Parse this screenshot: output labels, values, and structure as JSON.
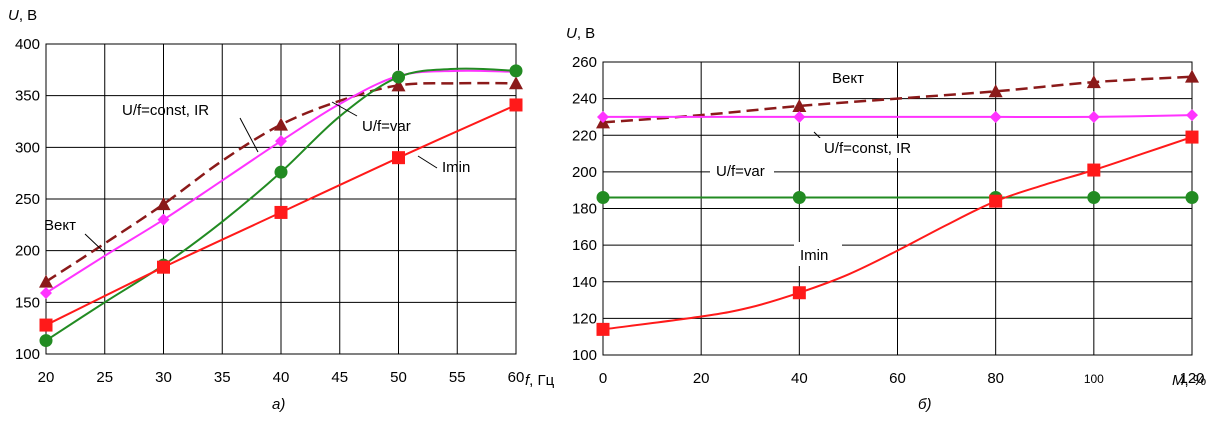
{
  "chart_data": [
    {
      "type": "line",
      "caption": "а)",
      "ylabel_var": "U",
      "ylabel_unit": ", В",
      "xlabel_var": "f",
      "xlabel_unit": ", Гц",
      "xlim": [
        20,
        60
      ],
      "ylim": [
        100,
        400
      ],
      "xticks": [
        "20",
        "25",
        "30",
        "35",
        "40",
        "45",
        "50",
        "55",
        "60"
      ],
      "yticks": [
        "100",
        "150",
        "200",
        "250",
        "300",
        "350",
        "400"
      ],
      "grid": true,
      "series": [
        {
          "name": "Вект",
          "color": "#8b1a1a",
          "dash": true,
          "marker": "triangle",
          "points": [
            [
              20,
              170
            ],
            [
              30,
              245
            ],
            [
              40,
              322
            ],
            [
              50,
              360
            ],
            [
              60,
              362
            ]
          ],
          "curve": [
            [
              20,
              170
            ],
            [
              25,
              207
            ],
            [
              30,
              245
            ],
            [
              35,
              287
            ],
            [
              40,
              322
            ],
            [
              45,
              345
            ],
            [
              50,
              360
            ],
            [
              55,
              362
            ],
            [
              60,
              362
            ]
          ]
        },
        {
          "name": "U/f=const, IR",
          "color": "#ff33ff",
          "dash": false,
          "marker": "diamond",
          "points": [
            [
              20,
              159
            ],
            [
              30,
              230
            ],
            [
              40,
              306
            ],
            [
              50,
              369
            ],
            [
              60,
              373
            ]
          ],
          "curve": [
            [
              20,
              159
            ],
            [
              25,
              195
            ],
            [
              30,
              230
            ],
            [
              35,
              268
            ],
            [
              40,
              306
            ],
            [
              45,
              342
            ],
            [
              50,
              369
            ],
            [
              55,
              374
            ],
            [
              60,
              373
            ]
          ]
        },
        {
          "name": "U/f=var",
          "color": "#228b22",
          "dash": false,
          "marker": "circle",
          "points": [
            [
              20,
              113
            ],
            [
              30,
              186
            ],
            [
              40,
              276
            ],
            [
              50,
              368
            ],
            [
              60,
              374
            ]
          ],
          "curve": [
            [
              20,
              113
            ],
            [
              25,
              150
            ],
            [
              30,
              186
            ],
            [
              35,
              228
            ],
            [
              40,
              276
            ],
            [
              45,
              330
            ],
            [
              50,
              368
            ],
            [
              55,
              376
            ],
            [
              60,
              374
            ]
          ]
        },
        {
          "name": "Imin",
          "color": "#ff1a1a",
          "dash": false,
          "marker": "square",
          "points": [
            [
              20,
              128
            ],
            [
              30,
              184
            ],
            [
              40,
              237
            ],
            [
              50,
              290
            ],
            [
              60,
              341
            ]
          ],
          "curve": [
            [
              20,
              128
            ],
            [
              30,
              184
            ],
            [
              40,
              237
            ],
            [
              50,
              290
            ],
            [
              60,
              341
            ]
          ]
        }
      ],
      "labels": {
        "vekt": "Вект",
        "ufconst": "U/f=const, IR",
        "ufvar": "U/f=var",
        "imin": "Imin"
      }
    },
    {
      "type": "line",
      "caption": "б)",
      "ylabel_var": "U",
      "ylabel_unit": ", В",
      "xlabel_var": "M",
      "xlabel_unit": ", %",
      "xlim": [
        0,
        120
      ],
      "ylim": [
        100,
        260
      ],
      "xticks": [
        "0",
        "20",
        "40",
        "60",
        "80",
        "100",
        "120"
      ],
      "yticks": [
        "100",
        "120",
        "140",
        "160",
        "180",
        "200",
        "220",
        "240",
        "260"
      ],
      "grid": true,
      "series": [
        {
          "name": "Вект",
          "color": "#8b1a1a",
          "dash": true,
          "marker": "triangle",
          "points": [
            [
              0,
              227
            ],
            [
              40,
              236
            ],
            [
              80,
              244
            ],
            [
              100,
              249
            ],
            [
              120,
              252
            ]
          ],
          "curve": [
            [
              0,
              227
            ],
            [
              20,
              231
            ],
            [
              40,
              236
            ],
            [
              60,
              240
            ],
            [
              80,
              244
            ],
            [
              100,
              249
            ],
            [
              120,
              252
            ]
          ]
        },
        {
          "name": "U/f=const, IR",
          "color": "#ff33ff",
          "dash": false,
          "marker": "diamond",
          "points": [
            [
              0,
              230
            ],
            [
              40,
              230
            ],
            [
              80,
              230
            ],
            [
              100,
              230
            ],
            [
              120,
              231
            ]
          ],
          "curve": [
            [
              0,
              230
            ],
            [
              40,
              230
            ],
            [
              80,
              230
            ],
            [
              100,
              230
            ],
            [
              120,
              231
            ]
          ]
        },
        {
          "name": "U/f=var",
          "color": "#228b22",
          "dash": false,
          "marker": "circle",
          "points": [
            [
              0,
              186
            ],
            [
              40,
              186
            ],
            [
              80,
              186
            ],
            [
              100,
              186
            ],
            [
              120,
              186
            ]
          ],
          "curve": [
            [
              0,
              186
            ],
            [
              40,
              186
            ],
            [
              80,
              186
            ],
            [
              100,
              186
            ],
            [
              120,
              186
            ]
          ]
        },
        {
          "name": "Imin",
          "color": "#ff1a1a",
          "dash": false,
          "marker": "square",
          "points": [
            [
              0,
              114
            ],
            [
              40,
              134
            ],
            [
              80,
              184
            ],
            [
              100,
              201
            ],
            [
              120,
              219
            ]
          ],
          "curve": [
            [
              0,
              114
            ],
            [
              20,
              121
            ],
            [
              30,
              126
            ],
            [
              40,
              134
            ],
            [
              50,
              144
            ],
            [
              60,
              157
            ],
            [
              70,
              171
            ],
            [
              80,
              184
            ],
            [
              90,
              193
            ],
            [
              100,
              201
            ],
            [
              110,
              210
            ],
            [
              120,
              219
            ]
          ]
        }
      ],
      "labels": {
        "vekt": "Вект",
        "ufconst": "U/f=const, IR",
        "ufvar": "U/f=var",
        "imin": "Imin"
      }
    }
  ]
}
